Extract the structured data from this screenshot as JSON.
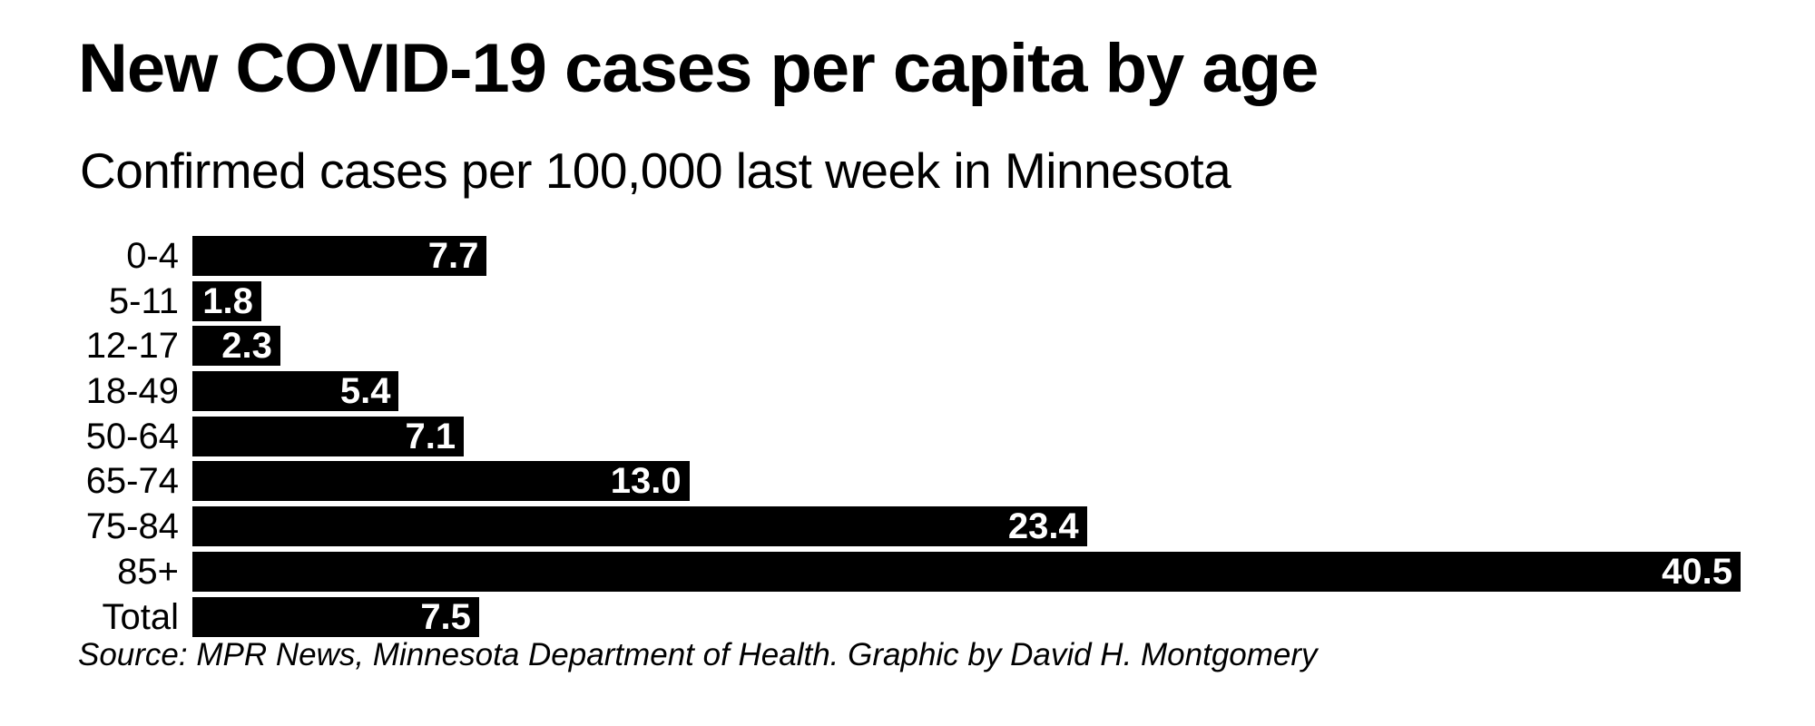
{
  "chart_data": {
    "type": "bar",
    "orientation": "horizontal",
    "title": "New COVID-19 cases per capita by age",
    "subtitle": "Confirmed cases per 100,000 last week in Minnesota",
    "source": "Source: MPR News, Minnesota Department of Health. Graphic by David H. Montgomery",
    "categories": [
      "0-4",
      "5-11",
      "12-17",
      "18-49",
      "50-64",
      "65-74",
      "75-84",
      "85+",
      "Total"
    ],
    "values": [
      7.7,
      1.8,
      2.3,
      5.4,
      7.1,
      13.0,
      23.4,
      40.5,
      7.5
    ],
    "value_labels": [
      "7.7",
      "1.8",
      "2.3",
      "5.4",
      "7.1",
      "13.0",
      "23.4",
      "40.5",
      "7.5"
    ],
    "xlim": [
      0,
      40.5
    ],
    "grid": false,
    "legend": false,
    "bar_color": "#000000",
    "value_label_color": "#ffffff",
    "text_color": "#000000",
    "background_color": "#ffffff"
  }
}
